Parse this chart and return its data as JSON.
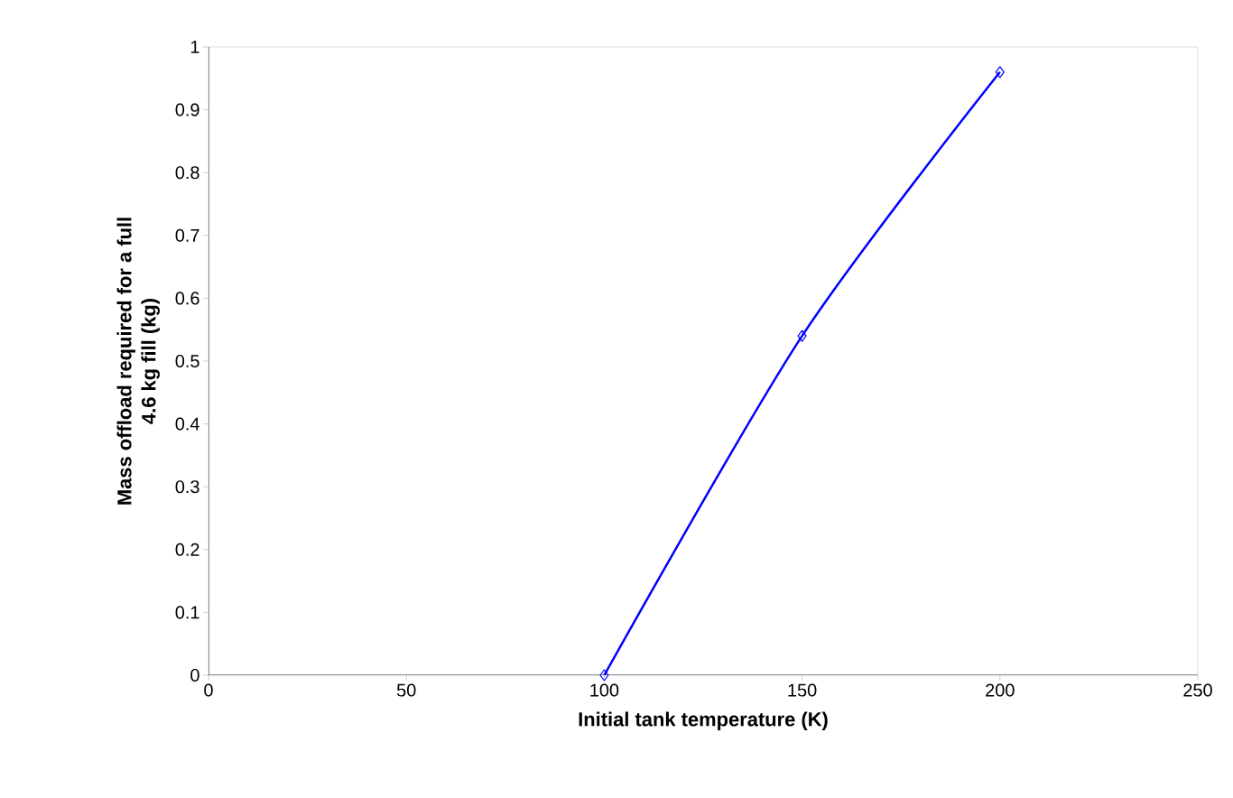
{
  "chart_data": {
    "type": "line",
    "xlabel": "Initial tank temperature (K)",
    "ylabel": "Mass offload required for a full\n4.6 kg fill (kg)",
    "x": [
      100,
      150,
      200
    ],
    "series": [
      {
        "color": "#0000ff",
        "values": [
          0,
          0.54,
          0.96
        ]
      }
    ],
    "xlim": [
      0,
      250
    ],
    "ylim": [
      0,
      1
    ],
    "xticks": [
      0,
      50,
      100,
      150,
      200,
      250
    ],
    "yticks": [
      0,
      0.1,
      0.2,
      0.3,
      0.4,
      0.5,
      0.6,
      0.7,
      0.8,
      0.9,
      1
    ],
    "marker": "diamond",
    "line_style": "solid"
  }
}
